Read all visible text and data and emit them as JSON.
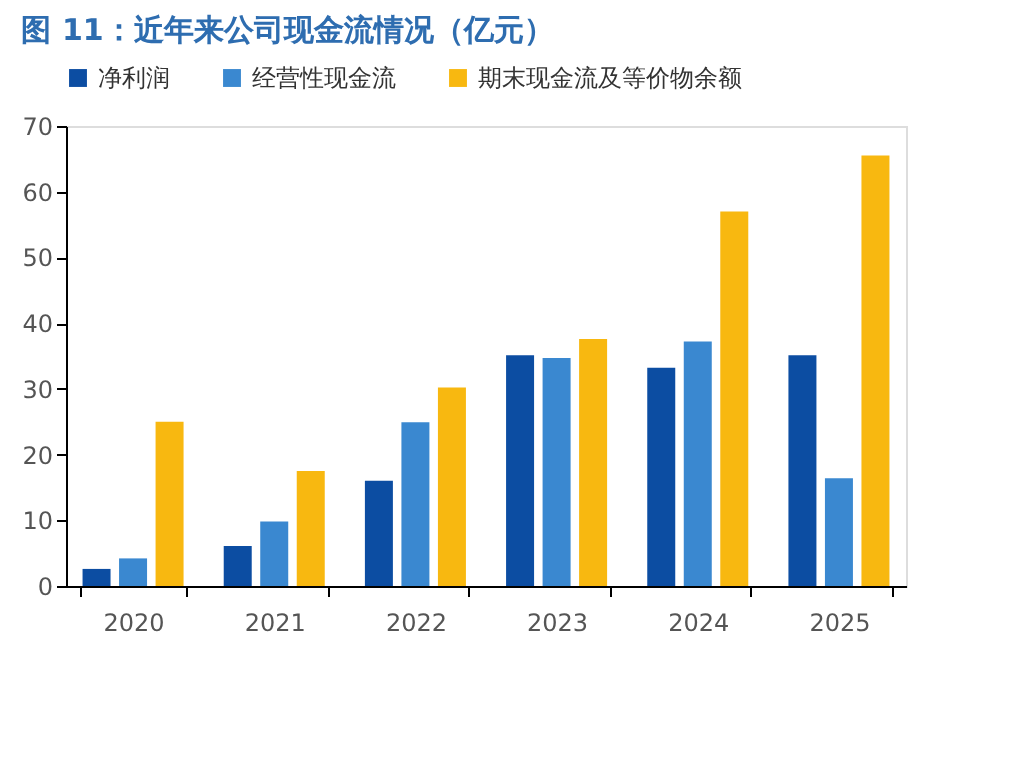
{
  "chart_data": {
    "type": "bar",
    "title": "图 11：近年来公司现金流情况（亿元）",
    "categories": [
      "2020",
      "2021",
      "2022",
      "2023",
      "2024",
      "2025"
    ],
    "series": [
      {
        "name": "净利润",
        "color": "#0c4da2",
        "values": [
          2.6,
          6.1,
          16.0,
          35.1,
          33.2,
          35.1
        ]
      },
      {
        "name": "经营性现金流",
        "color": "#3a88d0",
        "values": [
          4.2,
          9.8,
          24.9,
          34.7,
          37.2,
          16.4
        ]
      },
      {
        "name": "期末现金流及等价物余额",
        "color": "#f8b810",
        "values": [
          25.0,
          17.5,
          30.2,
          37.6,
          57.0,
          65.5
        ]
      }
    ],
    "ylim": [
      0,
      70
    ],
    "yticks": [
      0,
      10,
      20,
      30,
      40,
      50,
      60,
      70
    ],
    "grid": false,
    "legend": "top"
  }
}
